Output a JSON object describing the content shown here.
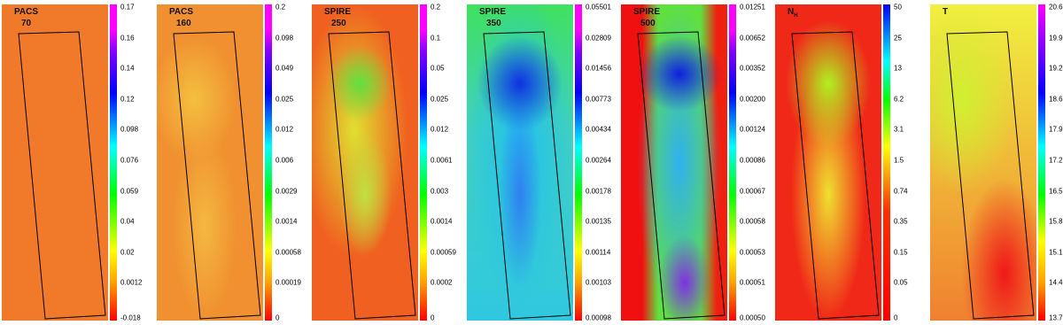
{
  "panels": [
    {
      "label": [
        "PACS",
        "70"
      ],
      "ticks": [
        "0.17",
        "0.16",
        "0.14",
        "0.12",
        "0.098",
        "0.076",
        "0.059",
        "0.04",
        "0.02",
        "0.0012",
        "-0.018"
      ]
    },
    {
      "label": [
        "PACS",
        "160"
      ],
      "ticks": [
        "0.2",
        "0.098",
        "0.049",
        "0.025",
        "0.012",
        "0.006",
        "0.0029",
        "0.0014",
        "0.00058",
        "0.00019",
        "0"
      ]
    },
    {
      "label": [
        "SPIRE",
        "250"
      ],
      "ticks": [
        "0.2",
        "0.1",
        "0.05",
        "0.025",
        "0.012",
        "0.0061",
        "0.003",
        "0.0014",
        "0.00059",
        "0.0002",
        "0"
      ]
    },
    {
      "label": [
        "SPIRE",
        "350"
      ],
      "ticks": [
        "0.05501",
        "0.02809",
        "0.01456",
        "0.00773",
        "0.00434",
        "0.00264",
        "0.00178",
        "0.00135",
        "0.00114",
        "0.00103",
        "0.00098"
      ]
    },
    {
      "label": [
        "SPIRE",
        "500"
      ],
      "ticks": [
        "0.01251",
        "0.00652",
        "0.00352",
        "0.00200",
        "0.00124",
        "0.00086",
        "0.00067",
        "0.00058",
        "0.00053",
        "0.00051",
        "0.00050"
      ]
    },
    {
      "label": [
        "N"
      ],
      "label_sub": "H",
      "ticks": [
        "50",
        "25",
        "13",
        "6.2",
        "3.1",
        "1.5",
        "0.74",
        "0.35",
        "0.15",
        "0.05",
        "0"
      ]
    },
    {
      "label": [
        "T"
      ],
      "ticks": [
        "20.6",
        "19.9",
        "19.2",
        "18.6",
        "17.9",
        "17.2",
        "16.5",
        "15.8",
        "15.1",
        "14.4",
        "13.7"
      ]
    }
  ]
}
